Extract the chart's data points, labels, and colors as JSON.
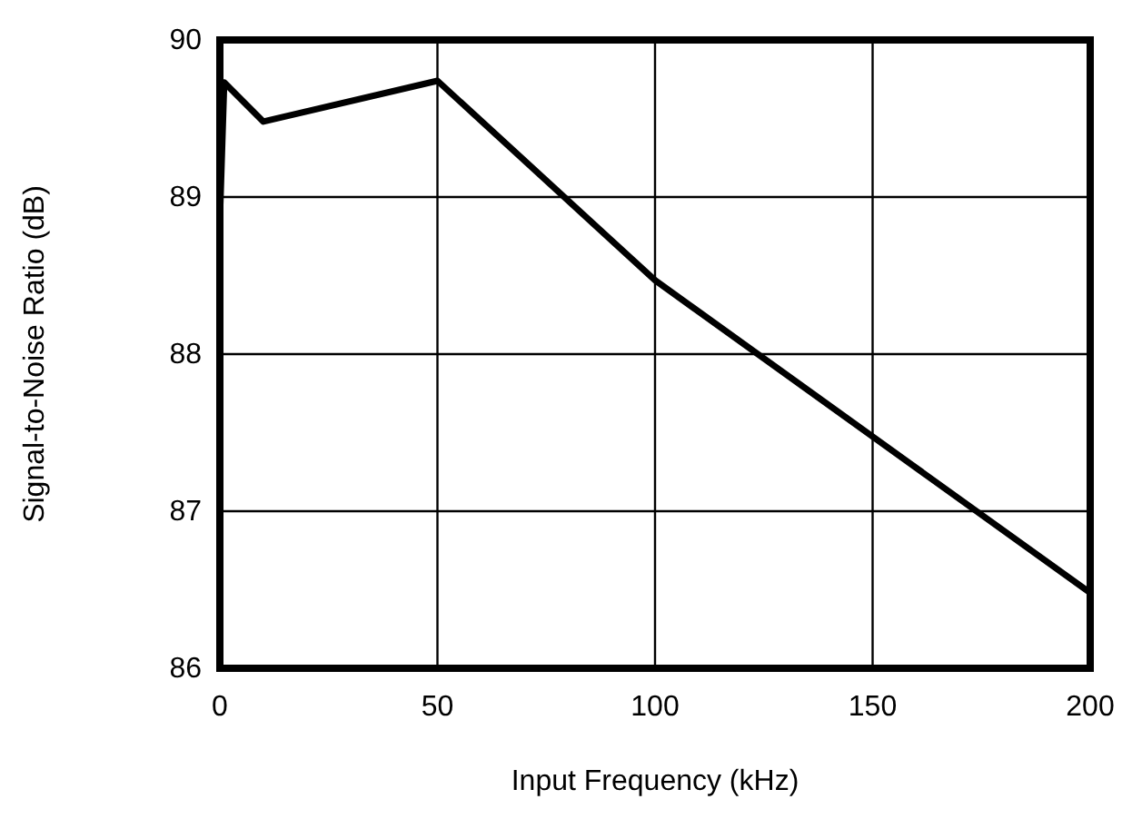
{
  "chart_data": {
    "type": "line",
    "xlabel": "Input Frequency (kHz)",
    "ylabel": "Signal-to-Noise Ratio (dB)",
    "x": [
      0.05,
      1,
      10,
      50,
      100,
      200
    ],
    "series": [
      {
        "color": "#000000",
        "values": [
          88.9,
          89.73,
          89.48,
          89.74,
          88.47,
          86.48
        ]
      }
    ],
    "xlim": [
      0,
      200
    ],
    "xticks": [
      0,
      50,
      100,
      150,
      200
    ],
    "ylim": [
      86,
      90
    ],
    "yticks": [
      86,
      87,
      88,
      89,
      90
    ],
    "grid": true,
    "marker": "none",
    "line_style": "solid"
  }
}
